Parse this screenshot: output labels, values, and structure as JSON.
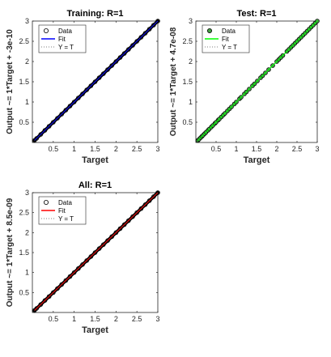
{
  "chart_data": [
    {
      "type": "scatter",
      "title": "Training: R=1",
      "xlabel": "Target",
      "ylabel": "Output ~= 1*Target + -3e-10",
      "xlim": [
        0,
        3
      ],
      "ylim": [
        0,
        3
      ],
      "xticks": [
        "0.5",
        "1",
        "1.5",
        "2",
        "2.5",
        "3"
      ],
      "yticks": [
        "0.5",
        "1",
        "1.5",
        "2",
        "2.5",
        "3"
      ],
      "grid": false,
      "legend_position": "top-left",
      "marker_fill": "none",
      "legend": [
        "Data",
        "Fit",
        "Y = T"
      ],
      "fit_color": "#0000ff",
      "series": [
        {
          "name": "Data",
          "x": [
            0.05,
            0.1,
            0.2,
            0.3,
            0.4,
            0.5,
            0.6,
            0.7,
            0.8,
            0.9,
            1.0,
            1.1,
            1.2,
            1.3,
            1.4,
            1.5,
            1.6,
            1.7,
            1.8,
            1.9,
            2.0,
            2.1,
            2.2,
            2.3,
            2.4,
            2.5,
            2.6,
            2.7,
            2.8,
            2.9,
            3.0
          ],
          "y": [
            0.05,
            0.1,
            0.2,
            0.3,
            0.4,
            0.5,
            0.6,
            0.7,
            0.8,
            0.9,
            1.0,
            1.1,
            1.2,
            1.3,
            1.4,
            1.5,
            1.6,
            1.7,
            1.8,
            1.9,
            2.0,
            2.1,
            2.2,
            2.3,
            2.4,
            2.5,
            2.6,
            2.7,
            2.8,
            2.9,
            3.0
          ]
        },
        {
          "name": "Fit",
          "x": [
            0.05,
            3.0
          ],
          "y": [
            0.05,
            3.0
          ]
        },
        {
          "name": "Y = T",
          "x": [
            0.05,
            3.0
          ],
          "y": [
            0.05,
            3.0
          ]
        }
      ]
    },
    {
      "type": "scatter",
      "title": "Test: R=1",
      "xlabel": "Target",
      "ylabel": "Output ~= 1*Target + 4.7e-08",
      "xlim": [
        0,
        3
      ],
      "ylim": [
        0,
        3
      ],
      "xticks": [
        "0.5",
        "1",
        "1.5",
        "2",
        "2.5",
        "3"
      ],
      "yticks": [
        "0.5",
        "1",
        "1.5",
        "2",
        "2.5",
        "3"
      ],
      "grid": false,
      "legend_position": "top-left",
      "marker_fill": "#46a046",
      "legend": [
        "Data",
        "Fit",
        "Y = T"
      ],
      "fit_color": "#00ff00",
      "series": [
        {
          "name": "Data",
          "x": [
            0.05,
            0.08,
            0.12,
            0.15,
            0.18,
            0.22,
            0.25,
            0.3,
            0.33,
            0.38,
            0.42,
            0.47,
            0.5,
            0.55,
            0.58,
            0.63,
            0.68,
            0.72,
            0.78,
            0.83,
            0.88,
            0.95,
            1.0,
            1.08,
            1.12,
            1.2,
            1.25,
            1.32,
            1.4,
            1.45,
            1.52,
            1.6,
            1.65,
            1.72,
            1.8,
            1.9,
            2.0,
            2.05,
            2.1,
            2.15,
            2.25,
            2.3,
            2.35,
            2.4,
            2.45,
            2.5,
            2.55,
            2.6,
            2.65,
            2.7,
            2.75,
            2.8,
            2.85,
            2.9,
            2.95,
            3.0
          ],
          "y": [
            0.05,
            0.08,
            0.12,
            0.15,
            0.18,
            0.22,
            0.25,
            0.3,
            0.33,
            0.38,
            0.42,
            0.47,
            0.5,
            0.55,
            0.58,
            0.63,
            0.68,
            0.72,
            0.78,
            0.83,
            0.88,
            0.95,
            1.0,
            1.08,
            1.12,
            1.2,
            1.25,
            1.32,
            1.4,
            1.45,
            1.52,
            1.6,
            1.65,
            1.72,
            1.8,
            1.9,
            2.0,
            2.05,
            2.1,
            2.15,
            2.25,
            2.3,
            2.35,
            2.4,
            2.45,
            2.5,
            2.55,
            2.6,
            2.65,
            2.7,
            2.75,
            2.8,
            2.85,
            2.9,
            2.95,
            3.0
          ]
        },
        {
          "name": "Fit",
          "x": [
            0.05,
            3.0
          ],
          "y": [
            0.05,
            3.0
          ]
        },
        {
          "name": "Y = T",
          "x": [
            0.05,
            3.0
          ],
          "y": [
            0.05,
            3.0
          ]
        }
      ]
    },
    {
      "type": "scatter",
      "title": "All: R=1",
      "xlabel": "Target",
      "ylabel": "Output ~= 1*Target + 8.5e-09",
      "xlim": [
        0,
        3
      ],
      "ylim": [
        0,
        3
      ],
      "xticks": [
        "0.5",
        "1",
        "1.5",
        "2",
        "2.5",
        "3"
      ],
      "yticks": [
        "0.5",
        "1",
        "1.5",
        "2",
        "2.5",
        "3"
      ],
      "grid": false,
      "legend_position": "top-left",
      "marker_fill": "none",
      "legend": [
        "Data",
        "Fit",
        "Y = T"
      ],
      "fit_color": "#ff0000",
      "series": [
        {
          "name": "Data",
          "x": [
            0.05,
            0.1,
            0.2,
            0.3,
            0.4,
            0.5,
            0.6,
            0.7,
            0.8,
            0.9,
            1.0,
            1.1,
            1.2,
            1.3,
            1.4,
            1.5,
            1.6,
            1.7,
            1.8,
            1.9,
            2.0,
            2.1,
            2.2,
            2.3,
            2.4,
            2.5,
            2.6,
            2.7,
            2.8,
            2.9,
            3.0
          ],
          "y": [
            0.05,
            0.1,
            0.2,
            0.3,
            0.4,
            0.5,
            0.6,
            0.7,
            0.8,
            0.9,
            1.0,
            1.1,
            1.2,
            1.3,
            1.4,
            1.5,
            1.6,
            1.7,
            1.8,
            1.9,
            2.0,
            2.1,
            2.2,
            2.3,
            2.4,
            2.5,
            2.6,
            2.7,
            2.8,
            2.9,
            3.0
          ]
        },
        {
          "name": "Fit",
          "x": [
            0.05,
            3.0
          ],
          "y": [
            0.05,
            3.0
          ]
        },
        {
          "name": "Y = T",
          "x": [
            0.05,
            3.0
          ],
          "y": [
            0.05,
            3.0
          ]
        }
      ]
    }
  ]
}
